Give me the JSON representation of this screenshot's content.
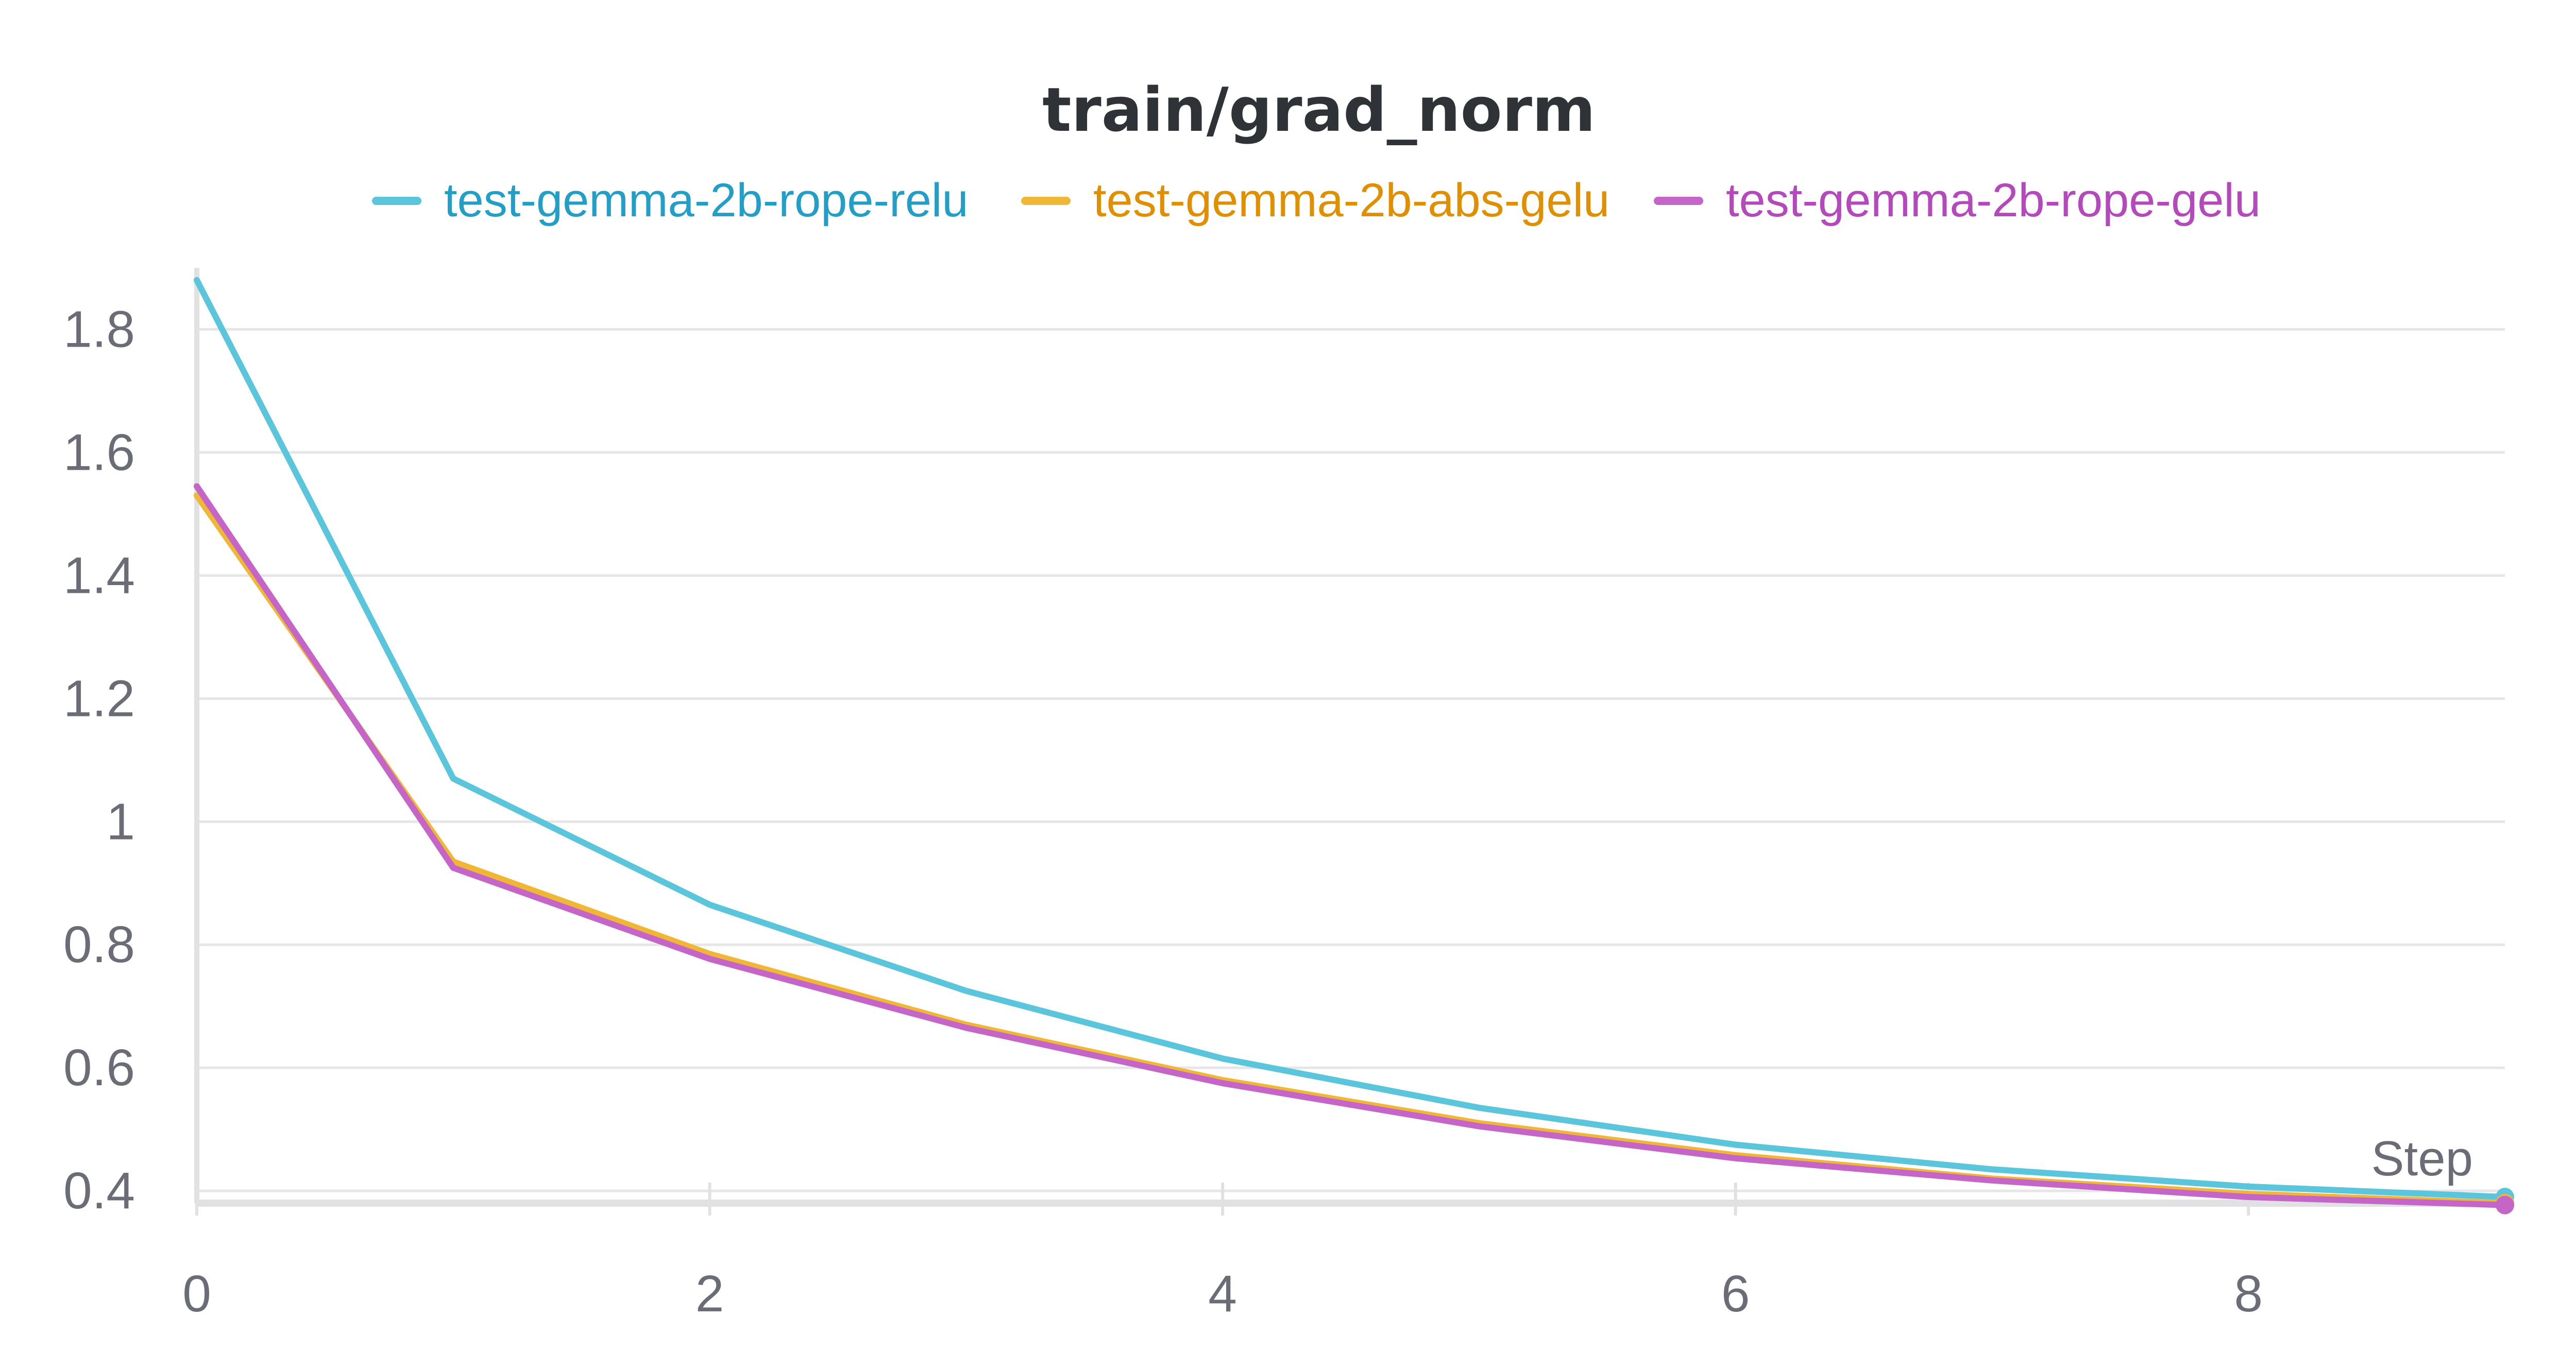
{
  "chart_data": {
    "type": "line",
    "title": "train/grad_norm",
    "xlabel": "Step",
    "ylabel": "",
    "xlim": [
      0,
      9
    ],
    "ylim": [
      0.38,
      1.9
    ],
    "xticks": [
      0,
      2,
      4,
      6,
      8
    ],
    "xtick_labels": [
      "0",
      "2",
      "4",
      "6",
      "8"
    ],
    "yticks": [
      0.4,
      0.6,
      0.8,
      1.0,
      1.2,
      1.4,
      1.6,
      1.8
    ],
    "ytick_labels": [
      "0.4",
      "0.6",
      "0.8",
      "1",
      "1.2",
      "1.4",
      "1.6",
      "1.8"
    ],
    "grid": true,
    "legend_position": "top",
    "x": [
      0,
      1,
      2,
      3,
      4,
      5,
      6,
      7,
      8,
      9
    ],
    "series": [
      {
        "name": "test-gemma-2b-rope-relu",
        "color": "#5bc5db",
        "label_color": "#229ec7",
        "values": [
          1.88,
          1.07,
          0.865,
          0.725,
          0.615,
          0.535,
          0.475,
          0.435,
          0.407,
          0.39
        ]
      },
      {
        "name": "test-gemma-2b-abs-gelu",
        "color": "#efb735",
        "label_color": "#df8f00",
        "values": [
          1.53,
          0.935,
          0.785,
          0.67,
          0.58,
          0.51,
          0.458,
          0.42,
          0.395,
          0.38
        ]
      },
      {
        "name": "test-gemma-2b-rope-gelu",
        "color": "#c565c7",
        "label_color": "#b449bb",
        "values": [
          1.545,
          0.925,
          0.777,
          0.665,
          0.575,
          0.505,
          0.453,
          0.417,
          0.39,
          0.377
        ]
      }
    ]
  }
}
